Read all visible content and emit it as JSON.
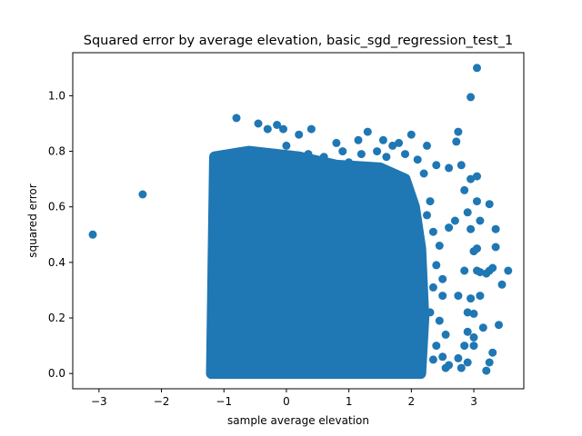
{
  "chart_data": {
    "type": "scatter",
    "title": "Squared error by average elevation, basic_sgd_regression_test_1",
    "xlabel": "sample average elevation",
    "ylabel": "squared error",
    "xlim": [
      -3.42,
      3.8
    ],
    "ylim": [
      -0.055,
      1.155
    ],
    "xticks": [
      -3,
      -2,
      -1,
      0,
      1,
      2,
      3
    ],
    "xtick_labels": [
      "−3",
      "−2",
      "−1",
      "0",
      "1",
      "2",
      "3"
    ],
    "yticks": [
      0.0,
      0.2,
      0.4,
      0.6,
      0.8,
      1.0
    ],
    "ytick_labels": [
      "0.0",
      "0.2",
      "0.4",
      "0.6",
      "0.8",
      "1.0"
    ],
    "grid": false,
    "marker_color": "#1f77b4",
    "points": [
      [
        -3.1,
        0.5
      ],
      [
        -2.3,
        0.645
      ],
      [
        -0.8,
        0.92
      ],
      [
        -0.45,
        0.9
      ],
      [
        -0.15,
        0.895
      ],
      [
        -0.3,
        0.88
      ],
      [
        -0.05,
        0.88
      ],
      [
        0.4,
        0.88
      ],
      [
        0.2,
        0.86
      ],
      [
        0.35,
        0.79
      ],
      [
        0.8,
        0.83
      ],
      [
        1.15,
        0.84
      ],
      [
        1.3,
        0.87
      ],
      [
        1.55,
        0.84
      ],
      [
        1.8,
        0.83
      ],
      [
        2.0,
        0.86
      ],
      [
        2.25,
        0.82
      ],
      [
        2.75,
        0.87
      ],
      [
        2.72,
        0.835
      ],
      [
        2.4,
        0.75
      ],
      [
        2.6,
        0.74
      ],
      [
        2.8,
        0.75
      ],
      [
        2.95,
        0.7
      ],
      [
        3.05,
        0.71
      ],
      [
        2.85,
        0.66
      ],
      [
        3.05,
        1.1
      ],
      [
        2.95,
        0.995
      ],
      [
        3.05,
        0.62
      ],
      [
        3.25,
        0.61
      ],
      [
        2.9,
        0.58
      ],
      [
        2.7,
        0.55
      ],
      [
        2.6,
        0.525
      ],
      [
        2.95,
        0.52
      ],
      [
        3.1,
        0.55
      ],
      [
        3.35,
        0.52
      ],
      [
        3.0,
        0.44
      ],
      [
        3.05,
        0.45
      ],
      [
        3.35,
        0.455
      ],
      [
        2.85,
        0.37
      ],
      [
        3.05,
        0.37
      ],
      [
        3.1,
        0.365
      ],
      [
        3.25,
        0.37
      ],
      [
        3.3,
        0.38
      ],
      [
        3.2,
        0.36
      ],
      [
        3.55,
        0.37
      ],
      [
        3.45,
        0.32
      ],
      [
        2.75,
        0.28
      ],
      [
        2.95,
        0.27
      ],
      [
        3.1,
        0.28
      ],
      [
        2.9,
        0.22
      ],
      [
        3.0,
        0.215
      ],
      [
        3.4,
        0.175
      ],
      [
        3.15,
        0.165
      ],
      [
        2.9,
        0.15
      ],
      [
        3.0,
        0.13
      ],
      [
        2.85,
        0.1
      ],
      [
        3.0,
        0.1
      ],
      [
        3.3,
        0.075
      ],
      [
        2.75,
        0.055
      ],
      [
        2.9,
        0.04
      ],
      [
        3.25,
        0.04
      ],
      [
        2.6,
        0.03
      ],
      [
        2.8,
        0.02
      ],
      [
        3.2,
        0.01
      ],
      [
        2.3,
        0.62
      ],
      [
        2.25,
        0.57
      ],
      [
        2.35,
        0.51
      ],
      [
        2.45,
        0.46
      ],
      [
        2.4,
        0.39
      ],
      [
        2.5,
        0.34
      ],
      [
        2.35,
        0.31
      ],
      [
        2.5,
        0.28
      ],
      [
        2.3,
        0.22
      ],
      [
        2.45,
        0.19
      ],
      [
        2.55,
        0.14
      ],
      [
        2.4,
        0.1
      ],
      [
        2.5,
        0.06
      ],
      [
        2.35,
        0.05
      ],
      [
        2.55,
        0.02
      ],
      [
        0.0,
        0.82
      ],
      [
        0.6,
        0.78
      ],
      [
        0.9,
        0.8
      ],
      [
        1.0,
        0.76
      ],
      [
        1.45,
        0.8
      ],
      [
        1.6,
        0.78
      ],
      [
        1.9,
        0.79
      ],
      [
        2.1,
        0.77
      ],
      [
        2.2,
        0.72
      ],
      [
        1.7,
        0.82
      ],
      [
        1.2,
        0.79
      ]
    ]
  }
}
